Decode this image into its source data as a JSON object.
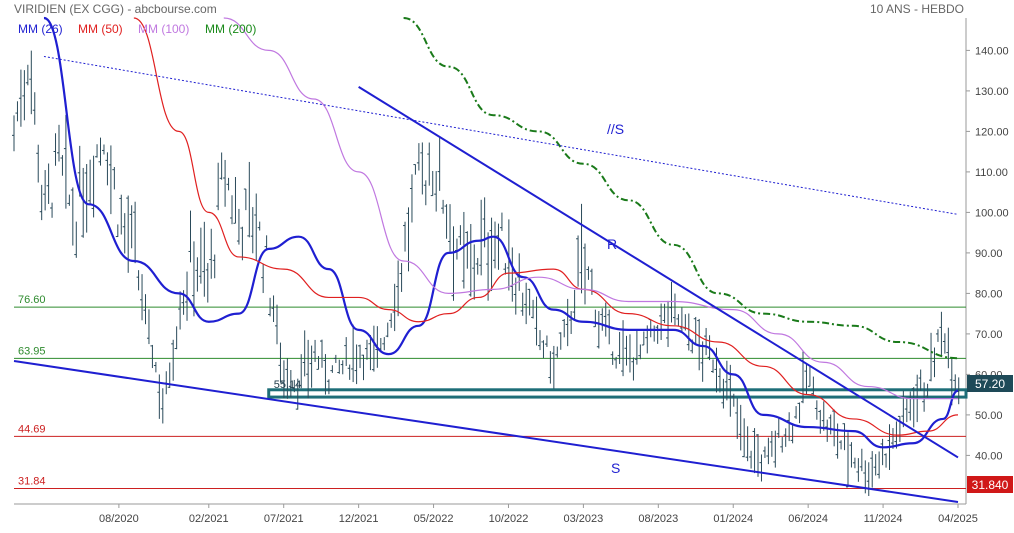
{
  "header": {
    "title": "VIRIDIEN (EX CGG) - abcbourse.com",
    "period": "10 ANS - HEBDO"
  },
  "legend": [
    {
      "label": "MM (26)",
      "color": "#1f1fd1"
    },
    {
      "label": "MM (50)",
      "color": "#e02020"
    },
    {
      "label": "MM (100)",
      "color": "#c078e0"
    },
    {
      "label": "MM (200)",
      "color": "#1a8a1a"
    }
  ],
  "colors": {
    "candles": "#2a4a5a",
    "ma26": "#1f1fd1",
    "ma50": "#e02020",
    "ma100": "#c078e0",
    "ma200": "#1a7a1a",
    "trendlines": "#1f1fd1",
    "level_green": "#2e8b2e",
    "level_red": "#cc2020",
    "zone": "#1e6e78",
    "price_box": "#1e4a58",
    "last_box": "#d01818"
  },
  "chart_data": {
    "type": "candlestick",
    "frequency": "weekly",
    "range_label": "10 ANS",
    "ylim": [
      28,
      148
    ],
    "y_axis_side": "right",
    "y_ticks": [
      "40.00",
      "50.00",
      "60.00",
      "70.00",
      "80.00",
      "90.00",
      "100.00",
      "110.00",
      "120.00",
      "130.00",
      "140.00"
    ],
    "x_labels": [
      "08/2020",
      "02/2021",
      "07/2021",
      "12/2021",
      "05/2022",
      "10/2022",
      "03/2023",
      "08/2023",
      "01/2024",
      "06/2024",
      "11/2024",
      "04/2025"
    ],
    "x_start": "2020-01",
    "x_end": "2025-04",
    "last_price": "57.20",
    "last_price_red": "31.840",
    "horizontal_levels": [
      {
        "label": "76.60",
        "value": 76.6,
        "color": "green"
      },
      {
        "label": "63.95",
        "value": 63.95,
        "color": "green"
      },
      {
        "label": "44.69",
        "value": 44.69,
        "color": "red"
      },
      {
        "label": "31.84",
        "value": 31.84,
        "color": "red"
      }
    ],
    "support_zone": {
      "label": "55.14",
      "low": 54.4,
      "high": 56.2,
      "start": "2021-06"
    },
    "trendlines": [
      {
        "label": "//S",
        "style": "dotted",
        "start": [
          "2020-03",
          138.5
        ],
        "end": [
          "2025-04",
          99.5
        ]
      },
      {
        "label": "R",
        "style": "solid",
        "start": [
          "2021-12",
          131
        ],
        "end": [
          "2025-04",
          39.5
        ]
      },
      {
        "label": "S",
        "style": "solid",
        "start": [
          "2020-01",
          63.3
        ],
        "end": [
          "2025-04",
          28.5
        ]
      }
    ],
    "moving_averages": [
      {
        "name": "MM (26)",
        "points": [
          [
            "2020-03",
            148
          ],
          [
            "2020-06",
            102
          ],
          [
            "2020-09",
            88
          ],
          [
            "2020-12",
            80
          ],
          [
            "2021-02",
            73
          ],
          [
            "2021-04",
            75
          ],
          [
            "2021-06",
            91
          ],
          [
            "2021-08",
            94
          ],
          [
            "2021-10",
            86
          ],
          [
            "2021-12",
            71
          ],
          [
            "2022-02",
            65
          ],
          [
            "2022-04",
            72
          ],
          [
            "2022-06",
            90
          ],
          [
            "2022-08",
            93
          ],
          [
            "2022-09",
            94
          ],
          [
            "2022-11",
            84
          ],
          [
            "2023-01",
            76
          ],
          [
            "2023-03",
            73
          ],
          [
            "2023-06",
            71
          ],
          [
            "2023-09",
            71
          ],
          [
            "2023-11",
            67
          ],
          [
            "2024-01",
            60
          ],
          [
            "2024-03",
            50
          ],
          [
            "2024-06",
            47
          ],
          [
            "2024-09",
            46
          ],
          [
            "2024-11",
            42
          ],
          [
            "2025-01",
            43
          ],
          [
            "2025-03",
            49
          ],
          [
            "2025-04",
            56
          ]
        ]
      },
      {
        "name": "MM (50)",
        "points": [
          [
            "2020-09",
            148
          ],
          [
            "2020-12",
            120
          ],
          [
            "2021-02",
            100
          ],
          [
            "2021-04",
            89
          ],
          [
            "2021-07",
            86
          ],
          [
            "2021-10",
            79
          ],
          [
            "2021-12",
            79
          ],
          [
            "2022-02",
            76
          ],
          [
            "2022-04",
            73
          ],
          [
            "2022-06",
            75
          ],
          [
            "2022-08",
            79
          ],
          [
            "2022-10",
            85
          ],
          [
            "2023-01",
            86
          ],
          [
            "2023-03",
            81
          ],
          [
            "2023-06",
            75
          ],
          [
            "2023-09",
            72
          ],
          [
            "2023-12",
            68
          ],
          [
            "2024-03",
            62
          ],
          [
            "2024-06",
            55
          ],
          [
            "2024-09",
            49
          ],
          [
            "2024-12",
            45
          ],
          [
            "2025-02",
            46
          ],
          [
            "2025-04",
            50
          ]
        ]
      },
      {
        "name": "MM (100)",
        "points": [
          [
            "2021-03",
            148
          ],
          [
            "2021-06",
            140
          ],
          [
            "2021-09",
            128
          ],
          [
            "2021-12",
            110
          ],
          [
            "2022-03",
            88
          ],
          [
            "2022-06",
            80
          ],
          [
            "2022-09",
            81
          ],
          [
            "2022-12",
            84
          ],
          [
            "2023-03",
            81
          ],
          [
            "2023-06",
            78
          ],
          [
            "2023-09",
            78
          ],
          [
            "2024-01",
            76
          ],
          [
            "2024-04",
            70
          ],
          [
            "2024-07",
            63
          ],
          [
            "2024-10",
            57
          ],
          [
            "2025-01",
            54
          ],
          [
            "2025-04",
            54
          ]
        ]
      },
      {
        "name": "MM (200)",
        "points": [
          [
            "2022-03",
            148
          ],
          [
            "2022-06",
            136
          ],
          [
            "2022-09",
            124
          ],
          [
            "2022-12",
            120
          ],
          [
            "2023-03",
            112
          ],
          [
            "2023-06",
            103
          ],
          [
            "2023-09",
            92
          ],
          [
            "2023-12",
            80
          ],
          [
            "2024-03",
            75
          ],
          [
            "2024-06",
            73
          ],
          [
            "2024-09",
            72
          ],
          [
            "2024-12",
            68
          ],
          [
            "2025-04",
            64
          ]
        ]
      }
    ],
    "price_path": [
      [
        "2020-01",
        120
      ],
      [
        "2020-02",
        140
      ],
      [
        "2020-03",
        100
      ],
      [
        "2020-04",
        112
      ],
      [
        "2020-05",
        98
      ],
      [
        "2020-06",
        110
      ],
      [
        "2020-07",
        120
      ],
      [
        "2020-08",
        100
      ],
      [
        "2020-09",
        90
      ],
      [
        "2020-10",
        70
      ],
      [
        "2020-11",
        52
      ],
      [
        "2020-12",
        75
      ],
      [
        "2021-01",
        90
      ],
      [
        "2021-02",
        82
      ],
      [
        "2021-03",
        110
      ],
      [
        "2021-04",
        98
      ],
      [
        "2021-05",
        100
      ],
      [
        "2021-06",
        84
      ],
      [
        "2021-07",
        60
      ],
      [
        "2021-08",
        58
      ],
      [
        "2021-09",
        65
      ],
      [
        "2021-10",
        60
      ],
      [
        "2021-11",
        62
      ],
      [
        "2021-12",
        66
      ],
      [
        "2022-01",
        64
      ],
      [
        "2022-02",
        72
      ],
      [
        "2022-03",
        90
      ],
      [
        "2022-04",
        108
      ],
      [
        "2022-05",
        112
      ],
      [
        "2022-06",
        100
      ],
      [
        "2022-07",
        86
      ],
      [
        "2022-08",
        90
      ],
      [
        "2022-09",
        94
      ],
      [
        "2022-10",
        90
      ],
      [
        "2022-11",
        80
      ],
      [
        "2022-12",
        70
      ],
      [
        "2023-01",
        62
      ],
      [
        "2023-02",
        72
      ],
      [
        "2023-03",
        88
      ],
      [
        "2023-04",
        74
      ],
      [
        "2023-05",
        66
      ],
      [
        "2023-06",
        64
      ],
      [
        "2023-07",
        66
      ],
      [
        "2023-08",
        72
      ],
      [
        "2023-09",
        76
      ],
      [
        "2023-10",
        70
      ],
      [
        "2023-11",
        66
      ],
      [
        "2023-12",
        62
      ],
      [
        "2024-01",
        52
      ],
      [
        "2024-02",
        42
      ],
      [
        "2024-03",
        38
      ],
      [
        "2024-04",
        44
      ],
      [
        "2024-05",
        48
      ],
      [
        "2024-06",
        60
      ],
      [
        "2024-07",
        48
      ],
      [
        "2024-08",
        44
      ],
      [
        "2024-09",
        40
      ],
      [
        "2024-10",
        36
      ],
      [
        "2024-11",
        40
      ],
      [
        "2024-12",
        46
      ],
      [
        "2025-01",
        55
      ],
      [
        "2025-02",
        58
      ],
      [
        "2025-03",
        72
      ],
      [
        "2025-04",
        57
      ]
    ]
  },
  "annotations": {
    "s_label": "S",
    "r_label": "R",
    "parallel_label": "//S",
    "zone_label": "55.14"
  }
}
